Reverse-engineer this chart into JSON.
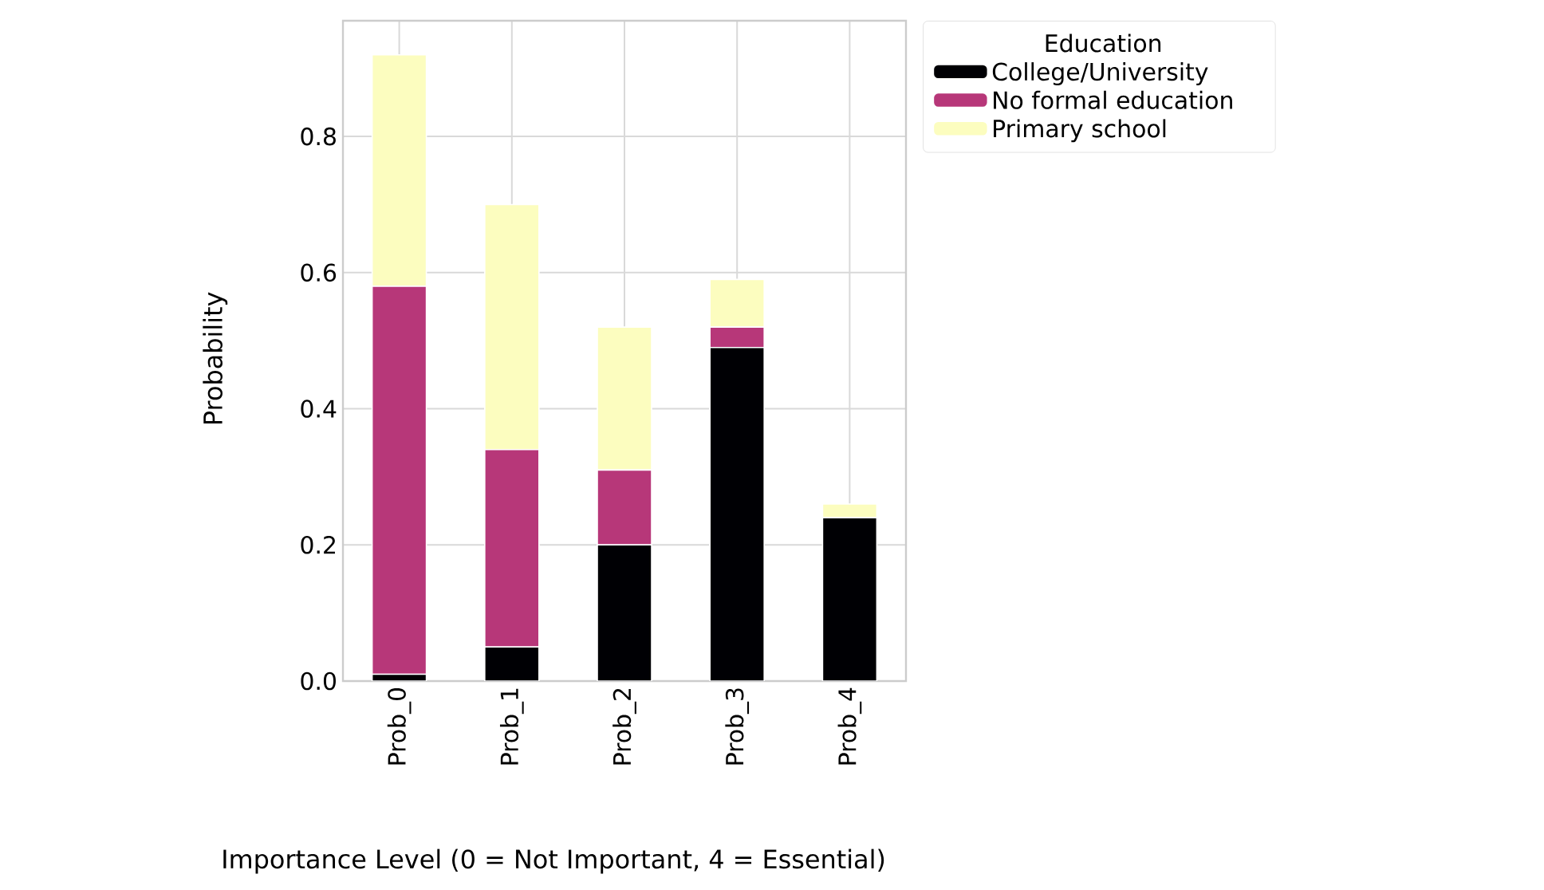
{
  "chart_data": {
    "type": "bar",
    "stacked": true,
    "xlabel": "Importance Level (0 = Not Important, 4 = Essential)",
    "ylabel": "Probability",
    "legend_title": "Education",
    "categories": [
      "Prob_0",
      "Prob_1",
      "Prob_2",
      "Prob_3",
      "Prob_4"
    ],
    "series": [
      {
        "name": "College/University",
        "color": "#000004",
        "values": [
          0.01,
          0.05,
          0.2,
          0.49,
          0.24
        ]
      },
      {
        "name": "No formal education",
        "color": "#b73779",
        "values": [
          0.57,
          0.29,
          0.11,
          0.03,
          0.0
        ]
      },
      {
        "name": "Primary school",
        "color": "#fcfdbf",
        "values": [
          0.34,
          0.36,
          0.21,
          0.07,
          0.02
        ]
      }
    ],
    "ylim": [
      0,
      0.97
    ],
    "yticks": [
      {
        "value": 0,
        "label": "0.0"
      },
      0.2,
      0.4,
      0.6,
      0.8
    ],
    "grid": true,
    "legend": "top right"
  }
}
